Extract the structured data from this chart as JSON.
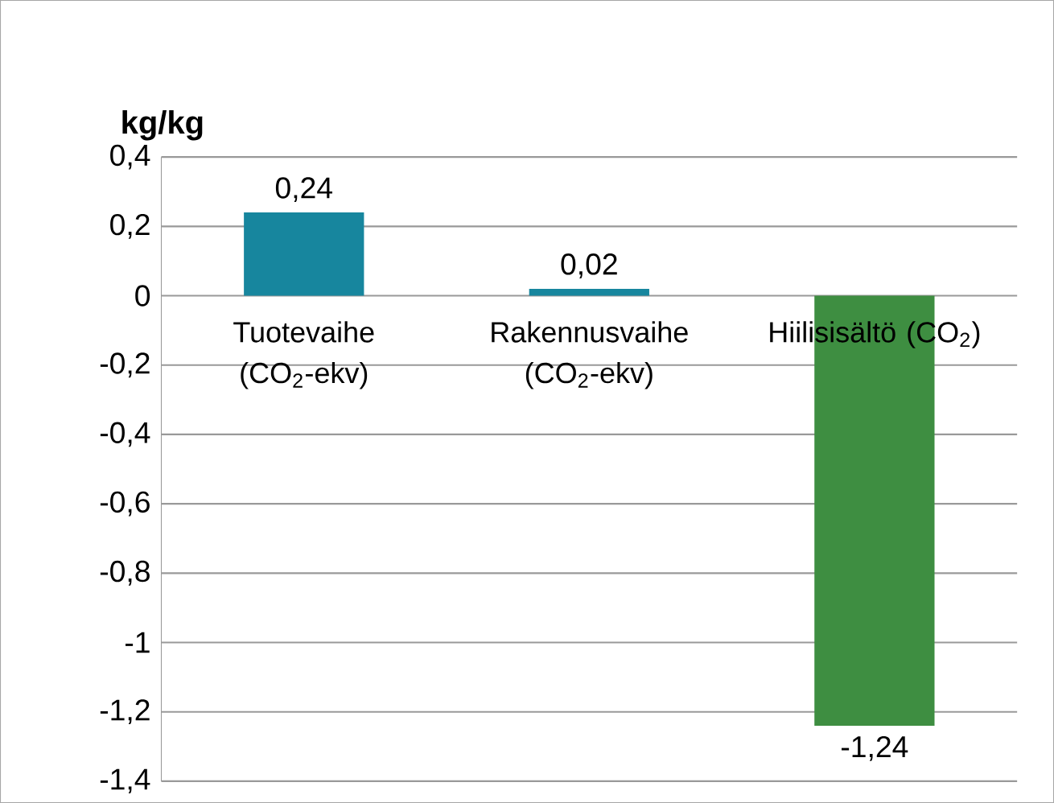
{
  "chart_data": {
    "type": "bar",
    "ylabel": "kg/kg",
    "categories": [
      "Tuotevaihe (CO$_{2}$-ekv)",
      "Rakennusvaihe (CO$_{2}$-ekv)",
      "Hiilisisältö (CO$_{2}$)"
    ],
    "values": [
      0.24,
      0.02,
      -1.24
    ],
    "colors": [
      "#17869e",
      "#17869e",
      "#3e8e41"
    ],
    "value_labels": [
      "0,24",
      "0,02",
      "-1,24"
    ],
    "ylim": [
      -1.4,
      0.4
    ],
    "yticks": [
      {
        "value": -1.4,
        "label": "-1,4"
      },
      {
        "value": -1.2,
        "label": "-1,2"
      },
      {
        "value": -1,
        "label": "-1"
      },
      {
        "value": -0.8,
        "label": "-0,8"
      },
      {
        "value": -0.6,
        "label": "-0,6"
      },
      {
        "value": -0.4,
        "label": "-0,4"
      },
      {
        "value": -0.2,
        "label": "-0,2"
      },
      {
        "value": 0,
        "label": "0"
      },
      {
        "value": 0.2,
        "label": "0,2"
      },
      {
        "value": 0.4,
        "label": "0,4"
      }
    ],
    "grid": "y"
  }
}
